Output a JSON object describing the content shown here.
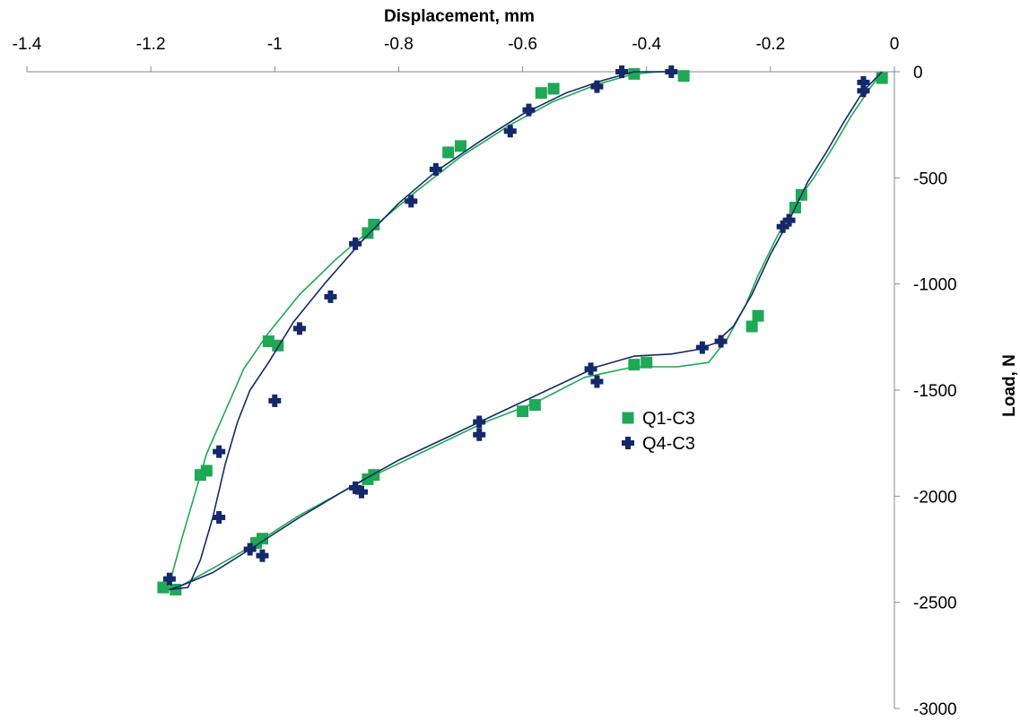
{
  "chart_data": {
    "type": "scatter",
    "title": "",
    "xlabel": "Displacement, mm",
    "ylabel": "Load, N",
    "xlim": [
      -1.4,
      0
    ],
    "ylim": [
      -3000,
      0
    ],
    "xticks": [
      -1.4,
      -1.2,
      -1,
      -0.8,
      -0.6,
      -0.4,
      -0.2,
      0
    ],
    "xtick_labels": [
      "-1.4",
      "-1.2",
      "-1",
      "-0.8",
      "-0.6",
      "-0.4",
      "-0.2",
      "0"
    ],
    "yticks": [
      0,
      -500,
      -1000,
      -1500,
      -2000,
      -2500,
      -3000
    ],
    "ytick_labels": [
      "0",
      "-500",
      "-1000",
      "-1500",
      "-2000",
      "-2500",
      "-3000"
    ],
    "x_axis_position": "top",
    "y_axis_position": "right",
    "grid": false,
    "legend_position": "center-right",
    "series": [
      {
        "name": "Q1-C3",
        "color": "#1fa855",
        "marker": "square",
        "line": [
          [
            -0.02,
            0
          ],
          [
            -0.04,
            -80
          ],
          [
            -0.07,
            -210
          ],
          [
            -0.1,
            -360
          ],
          [
            -0.13,
            -500
          ],
          [
            -0.16,
            -620
          ],
          [
            -0.19,
            -780
          ],
          [
            -0.22,
            -960
          ],
          [
            -0.24,
            -1100
          ],
          [
            -0.27,
            -1260
          ],
          [
            -0.3,
            -1370
          ],
          [
            -0.35,
            -1390
          ],
          [
            -0.42,
            -1390
          ],
          [
            -0.5,
            -1440
          ],
          [
            -0.58,
            -1560
          ],
          [
            -0.66,
            -1650
          ],
          [
            -0.76,
            -1790
          ],
          [
            -0.86,
            -1930
          ],
          [
            -0.96,
            -2090
          ],
          [
            -1.04,
            -2240
          ],
          [
            -1.1,
            -2340
          ],
          [
            -1.15,
            -2420
          ],
          [
            -1.17,
            -2440
          ],
          [
            -1.165,
            -2360
          ],
          [
            -1.15,
            -2200
          ],
          [
            -1.13,
            -2000
          ],
          [
            -1.11,
            -1800
          ],
          [
            -1.08,
            -1600
          ],
          [
            -1.05,
            -1400
          ],
          [
            -1.01,
            -1230
          ],
          [
            -0.96,
            -1050
          ],
          [
            -0.9,
            -880
          ],
          [
            -0.84,
            -730
          ],
          [
            -0.77,
            -560
          ],
          [
            -0.7,
            -400
          ],
          [
            -0.62,
            -250
          ],
          [
            -0.55,
            -140
          ],
          [
            -0.48,
            -60
          ],
          [
            -0.42,
            -10
          ],
          [
            -0.38,
            0
          ],
          [
            -0.34,
            0
          ]
        ],
        "markers": [
          [
            -0.02,
            -30
          ],
          [
            -0.15,
            -580
          ],
          [
            -0.16,
            -640
          ],
          [
            -0.22,
            -1150
          ],
          [
            -0.23,
            -1200
          ],
          [
            -0.4,
            -1370
          ],
          [
            -0.42,
            -1380
          ],
          [
            -0.58,
            -1570
          ],
          [
            -0.6,
            -1600
          ],
          [
            -0.84,
            -1900
          ],
          [
            -0.85,
            -1920
          ],
          [
            -1.02,
            -2200
          ],
          [
            -1.03,
            -2220
          ],
          [
            -1.16,
            -2440
          ],
          [
            -1.18,
            -2430
          ],
          [
            -1.12,
            -1900
          ],
          [
            -1.11,
            -1880
          ],
          [
            -1.01,
            -1270
          ],
          [
            -0.995,
            -1290
          ],
          [
            -0.84,
            -720
          ],
          [
            -0.85,
            -760
          ],
          [
            -0.72,
            -380
          ],
          [
            -0.7,
            -350
          ],
          [
            -0.57,
            -100
          ],
          [
            -0.55,
            -80
          ],
          [
            -0.42,
            -10
          ],
          [
            -0.34,
            -20
          ]
        ]
      },
      {
        "name": "Q4-C3",
        "color": "#14286a",
        "marker": "plus",
        "line": [
          [
            -0.02,
            0
          ],
          [
            -0.05,
            -90
          ],
          [
            -0.08,
            -230
          ],
          [
            -0.11,
            -380
          ],
          [
            -0.14,
            -520
          ],
          [
            -0.17,
            -700
          ],
          [
            -0.2,
            -860
          ],
          [
            -0.23,
            -1050
          ],
          [
            -0.26,
            -1200
          ],
          [
            -0.29,
            -1280
          ],
          [
            -0.32,
            -1310
          ],
          [
            -0.36,
            -1330
          ],
          [
            -0.42,
            -1340
          ],
          [
            -0.48,
            -1390
          ],
          [
            -0.56,
            -1500
          ],
          [
            -0.64,
            -1610
          ],
          [
            -0.72,
            -1720
          ],
          [
            -0.8,
            -1830
          ],
          [
            -0.88,
            -1960
          ],
          [
            -0.96,
            -2100
          ],
          [
            -1.04,
            -2250
          ],
          [
            -1.1,
            -2360
          ],
          [
            -1.15,
            -2420
          ],
          [
            -1.17,
            -2440
          ],
          [
            -1.14,
            -2430
          ],
          [
            -1.12,
            -2300
          ],
          [
            -1.1,
            -2100
          ],
          [
            -1.08,
            -1850
          ],
          [
            -1.06,
            -1650
          ],
          [
            -1.04,
            -1500
          ],
          [
            -1.01,
            -1370
          ],
          [
            -0.97,
            -1180
          ],
          [
            -0.92,
            -1000
          ],
          [
            -0.86,
            -800
          ],
          [
            -0.8,
            -620
          ],
          [
            -0.74,
            -470
          ],
          [
            -0.67,
            -330
          ],
          [
            -0.6,
            -200
          ],
          [
            -0.53,
            -100
          ],
          [
            -0.47,
            -40
          ],
          [
            -0.42,
            0
          ],
          [
            -0.36,
            0
          ]
        ],
        "markers": [
          [
            -0.05,
            -50
          ],
          [
            -0.05,
            -90
          ],
          [
            -0.17,
            -700
          ],
          [
            -0.18,
            -730
          ],
          [
            -0.28,
            -1270
          ],
          [
            -0.31,
            -1300
          ],
          [
            -0.49,
            -1400
          ],
          [
            -0.48,
            -1460
          ],
          [
            -0.67,
            -1650
          ],
          [
            -0.67,
            -1710
          ],
          [
            -0.87,
            -1960
          ],
          [
            -0.86,
            -1980
          ],
          [
            -1.04,
            -2250
          ],
          [
            -1.02,
            -2280
          ],
          [
            -1.17,
            -2390
          ],
          [
            -1.09,
            -2100
          ],
          [
            -1.09,
            -1790
          ],
          [
            -1.0,
            -1550
          ],
          [
            -0.96,
            -1210
          ],
          [
            -0.91,
            -1060
          ],
          [
            -0.87,
            -810
          ],
          [
            -0.78,
            -610
          ],
          [
            -0.74,
            -460
          ],
          [
            -0.62,
            -280
          ],
          [
            -0.59,
            -180
          ],
          [
            -0.48,
            -70
          ],
          [
            -0.44,
            0
          ],
          [
            -0.36,
            0
          ]
        ]
      }
    ]
  }
}
